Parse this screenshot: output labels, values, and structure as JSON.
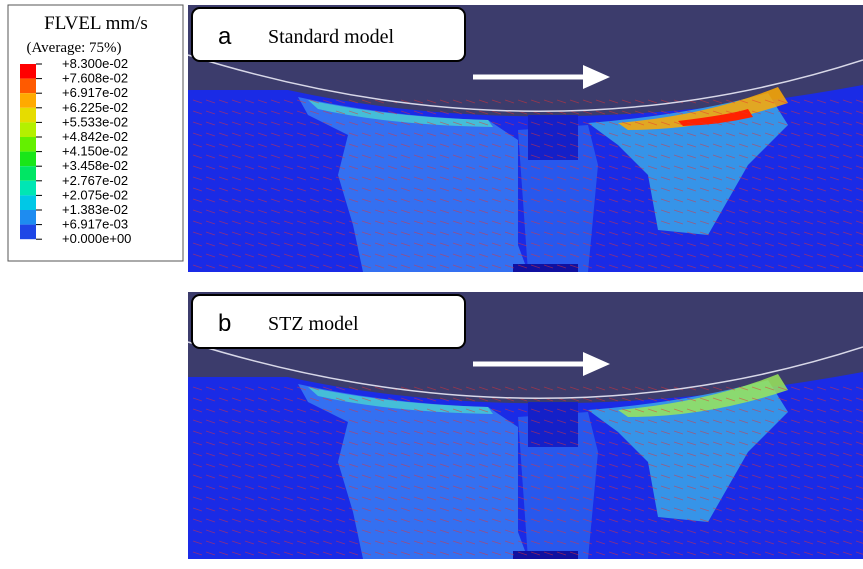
{
  "legend": {
    "title": "FLVEL mm/s",
    "subtitle": "(Average: 75%)",
    "labels": [
      "+8.300e-02",
      "+7.608e-02",
      "+6.917e-02",
      "+6.225e-02",
      "+5.533e-02",
      "+4.842e-02",
      "+4.150e-02",
      "+3.458e-02",
      "+2.767e-02",
      "+2.075e-02",
      "+1.383e-02",
      "+6.917e-03",
      "+0.000e+00"
    ]
  },
  "panels": [
    {
      "letter": "a",
      "label": "Standard model"
    },
    {
      "letter": "b",
      "label": "STZ model"
    }
  ]
}
